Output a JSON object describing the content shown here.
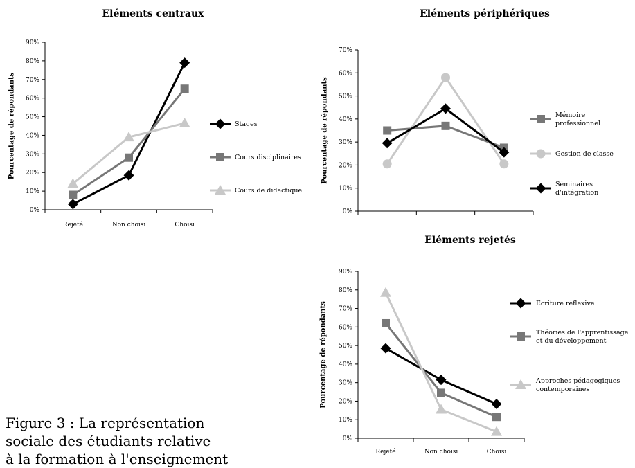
{
  "chart_data": [
    {
      "type": "line",
      "title": "Eléments centraux",
      "ylabel": "Pourcentage de répondants",
      "categories": [
        "Rejeté",
        "Non choisi",
        "Choisi"
      ],
      "ylim": [
        0,
        90
      ],
      "yticks": [
        "0%",
        "10%",
        "20%",
        "30%",
        "40%",
        "50%",
        "60%",
        "70%",
        "80%",
        "90%"
      ],
      "legend_position": "right",
      "series": [
        {
          "name": "Stages",
          "values": [
            3,
            18.5,
            79
          ],
          "color": "#000000",
          "marker": "diamond"
        },
        {
          "name": "Cours disciplinaires",
          "values": [
            8,
            28,
            65
          ],
          "color": "#777777",
          "marker": "square"
        },
        {
          "name": "Cours de didactique",
          "values": [
            14,
            39,
            46.5
          ],
          "color": "#c8c8c8",
          "marker": "triangle"
        }
      ]
    },
    {
      "type": "line",
      "title": "Eléments périphériques",
      "ylabel": "Pourcentage de répondants",
      "categories": [
        "",
        "",
        ""
      ],
      "ylim": [
        0,
        70
      ],
      "yticks": [
        "0%",
        "10%",
        "20%",
        "30%",
        "40%",
        "50%",
        "60%",
        "70%"
      ],
      "legend_position": "right",
      "series": [
        {
          "name": "Mémoire professionnel",
          "values": [
            35,
            37,
            27.5
          ],
          "color": "#777777",
          "marker": "square"
        },
        {
          "name": "Gestion de classe",
          "values": [
            20.5,
            58,
            20.5
          ],
          "color": "#c8c8c8",
          "marker": "circle"
        },
        {
          "name": "Séminaires d'intégration",
          "values": [
            29.5,
            44.5,
            25.5
          ],
          "color": "#000000",
          "marker": "diamond"
        }
      ]
    },
    {
      "type": "line",
      "title": "Eléments rejetés",
      "ylabel": "Pourcentage de répondants",
      "categories": [
        "Rejeté",
        "Non choisi",
        "Choisi"
      ],
      "ylim": [
        0,
        90
      ],
      "yticks": [
        "0%",
        "10%",
        "20%",
        "30%",
        "40%",
        "50%",
        "60%",
        "70%",
        "80%",
        "90%"
      ],
      "legend_position": "right",
      "series": [
        {
          "name": "Ecriture réflexive",
          "values": [
            48.5,
            31.5,
            18.5
          ],
          "color": "#000000",
          "marker": "diamond"
        },
        {
          "name": "Théories de l'apprentissage et du développement",
          "values": [
            62,
            24.5,
            11.5
          ],
          "color": "#777777",
          "marker": "square"
        },
        {
          "name": "Approches pédagogiques contemporaines",
          "values": [
            78.5,
            15.5,
            3.5
          ],
          "color": "#c8c8c8",
          "marker": "triangle"
        }
      ]
    }
  ],
  "legend_lines": [
    [
      [
        "Stages"
      ],
      [
        "Cours disciplinaires"
      ],
      [
        "Cours de didactique"
      ]
    ],
    [
      [
        "Mémoire",
        "professionnel"
      ],
      [
        "Gestion de classe"
      ],
      [
        "Séminaires",
        "d'intégration"
      ]
    ],
    [
      [
        "Ecriture réflexive"
      ],
      [
        "Théories de l'apprentissage",
        "et du développement"
      ],
      [
        "Approches pédagogiques",
        "contemporaines"
      ]
    ]
  ],
  "caption": "Figure 3 : La représentation\nsociale des étudiants relative\nà la formation à l'enseignement"
}
